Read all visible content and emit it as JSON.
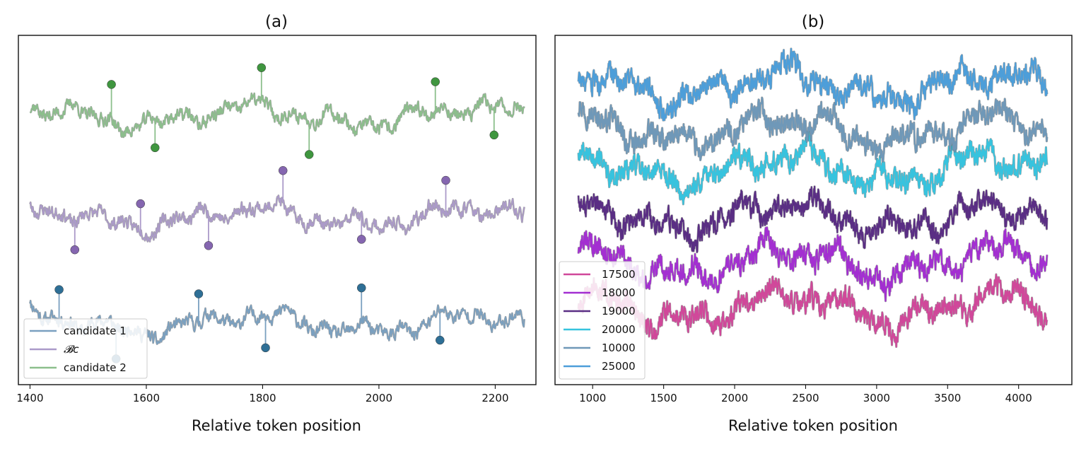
{
  "chart_data": [
    {
      "type": "line",
      "title": "(a)",
      "xlabel": "Relative token position",
      "ylabel": "",
      "xlim": [
        1380,
        2270
      ],
      "xticks": [
        1400,
        1600,
        1800,
        2000,
        2200
      ],
      "x_range": [
        1400,
        2250
      ],
      "yticks_shown": false,
      "legend_position": "lower-left",
      "series": [
        {
          "name": "candidate 1",
          "color": "#7aa0c0",
          "marker_color": "#2e6f96",
          "offset": 2.2,
          "noise_seed": 11,
          "peaks": [
            1450,
            1690,
            1970
          ],
          "troughs": [
            1548,
            1805,
            2105
          ]
        },
        {
          "name": "𝓑c",
          "color": "#ab9ac9",
          "marker_color": "#8566b0",
          "offset": 6.05,
          "noise_seed": 23,
          "peaks": [
            1590,
            1835,
            2115
          ],
          "troughs": [
            1477,
            1707,
            1970
          ]
        },
        {
          "name": "candidate 2",
          "color": "#8cbf8c",
          "marker_color": "#3f963f",
          "offset": 9.7,
          "noise_seed": 37,
          "peaks": [
            1540,
            1798,
            2097
          ],
          "troughs": [
            1615,
            1880,
            2198
          ]
        }
      ],
      "ylim": [
        0,
        12.6
      ]
    },
    {
      "type": "line",
      "title": "(b)",
      "xlabel": "Relative token position",
      "ylabel": "",
      "xlim": [
        735,
        4375
      ],
      "xticks": [
        1000,
        1500,
        2000,
        2500,
        3000,
        3500,
        4000
      ],
      "x_range": [
        900,
        4200
      ],
      "yticks_shown": false,
      "legend_position": "lower-left",
      "series": [
        {
          "name": "17500",
          "color": "#d0489a",
          "offset": 2.5,
          "noise_seed": 51
        },
        {
          "name": "18000",
          "color": "#a32fd1",
          "offset": 4.0,
          "noise_seed": 63
        },
        {
          "name": "19000",
          "color": "#5a2e84",
          "offset": 5.45,
          "noise_seed": 77
        },
        {
          "name": "20000",
          "color": "#37c3de",
          "offset": 7.05,
          "noise_seed": 89
        },
        {
          "name": "10000",
          "color": "#6f98b8",
          "offset": 8.3,
          "noise_seed": 97
        },
        {
          "name": "25000",
          "color": "#4d9ed9",
          "offset": 9.75,
          "noise_seed": 103
        }
      ],
      "ylim": [
        0,
        11.4
      ]
    }
  ]
}
